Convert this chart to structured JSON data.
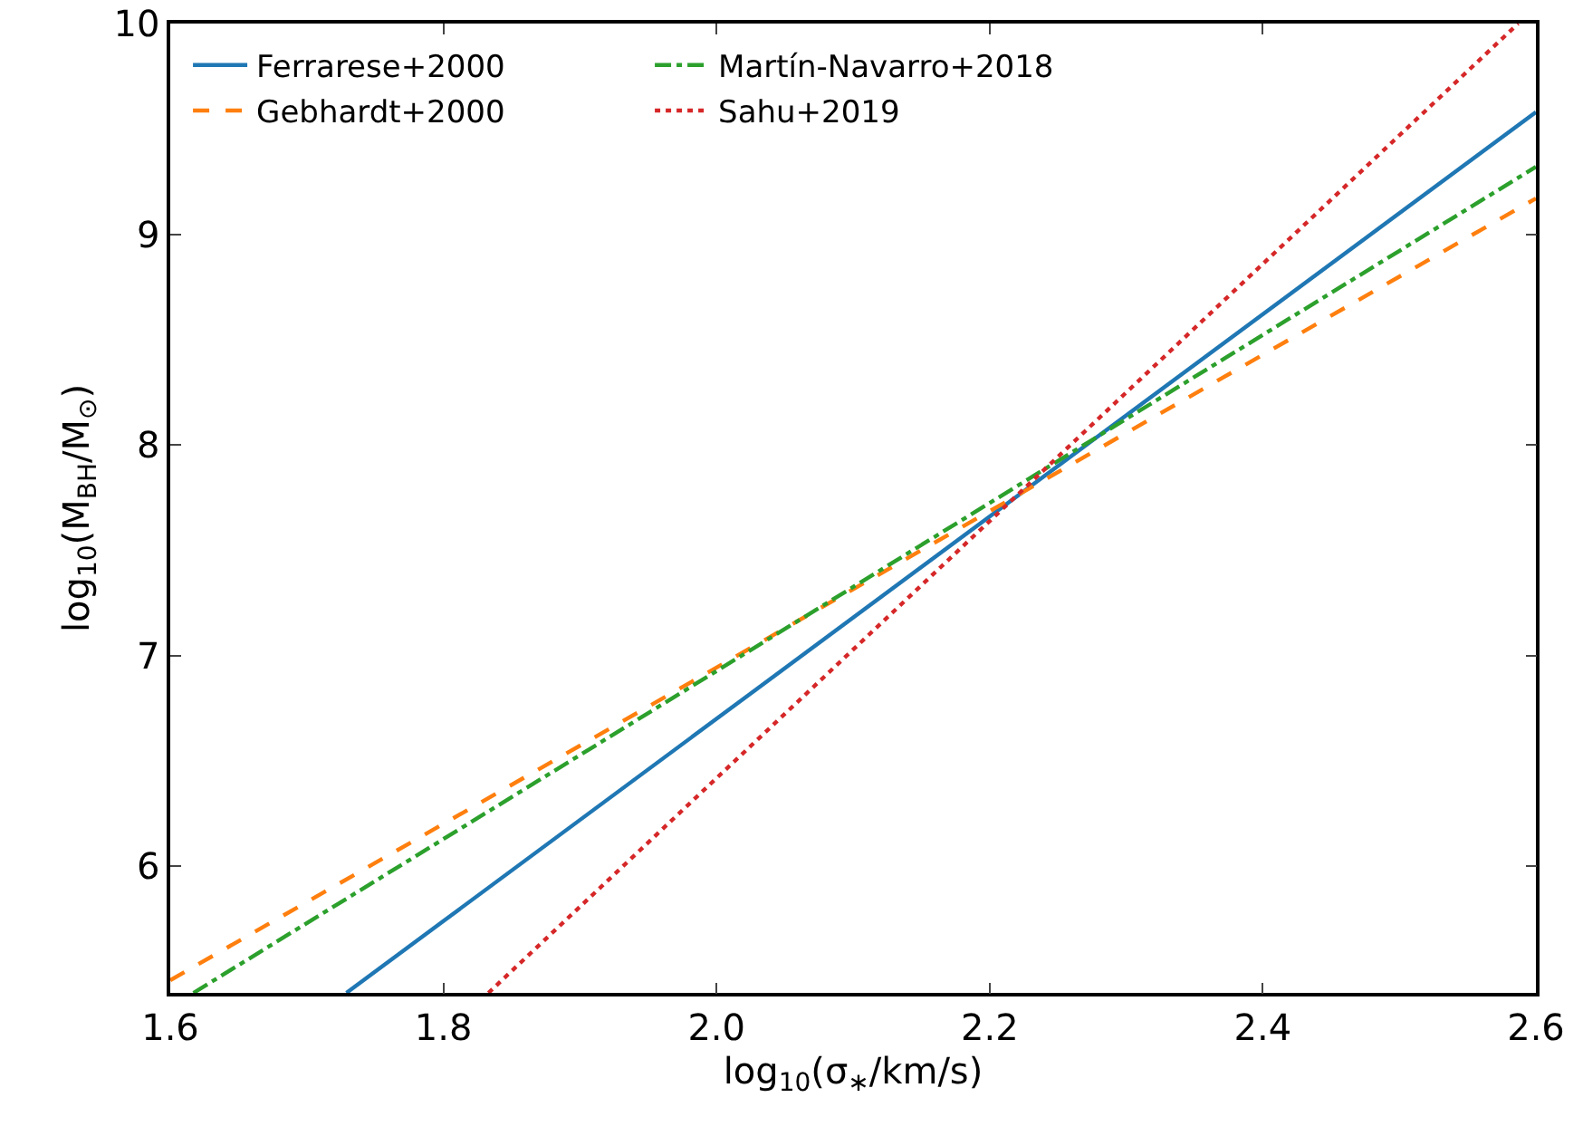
{
  "chart_data": {
    "type": "line",
    "xlabel": "log$_{10}$(σ$_{∗}$/km/s)",
    "ylabel": "log$_{10}$(M$_{BH}$/M$_{⊙}$)",
    "xlim": [
      1.6,
      2.6
    ],
    "xticks": [
      1.6,
      1.8,
      {
        "value": 2.0,
        "label": "2.0"
      },
      2.2,
      2.4,
      2.6
    ],
    "ylim": [
      5.4,
      10
    ],
    "yticks": [
      6,
      7,
      8,
      9,
      10
    ],
    "grid": false,
    "legend": "top left",
    "series": [
      {
        "name": "Ferrarese+2000",
        "color": "#1f77b4",
        "line_style": "solid",
        "x": [
          1.729,
          2.6
        ],
        "values": [
          5.4,
          9.58
        ]
      },
      {
        "name": "Gebhardt+2000",
        "color": "#ff7f0e",
        "line_style": "dashed",
        "x": [
          1.6,
          2.6
        ],
        "values": [
          5.46,
          9.17
        ]
      },
      {
        "name": "Martín-Navarro+2018",
        "color": "#2ca02c",
        "line_style": "dashdot",
        "x": [
          1.617,
          2.6
        ],
        "values": [
          5.4,
          9.32
        ]
      },
      {
        "name": "Sahu+2019",
        "color": "#d62728",
        "line_style": "dotted",
        "x": [
          1.833,
          2.587
        ],
        "values": [
          5.4,
          10
        ]
      }
    ]
  }
}
